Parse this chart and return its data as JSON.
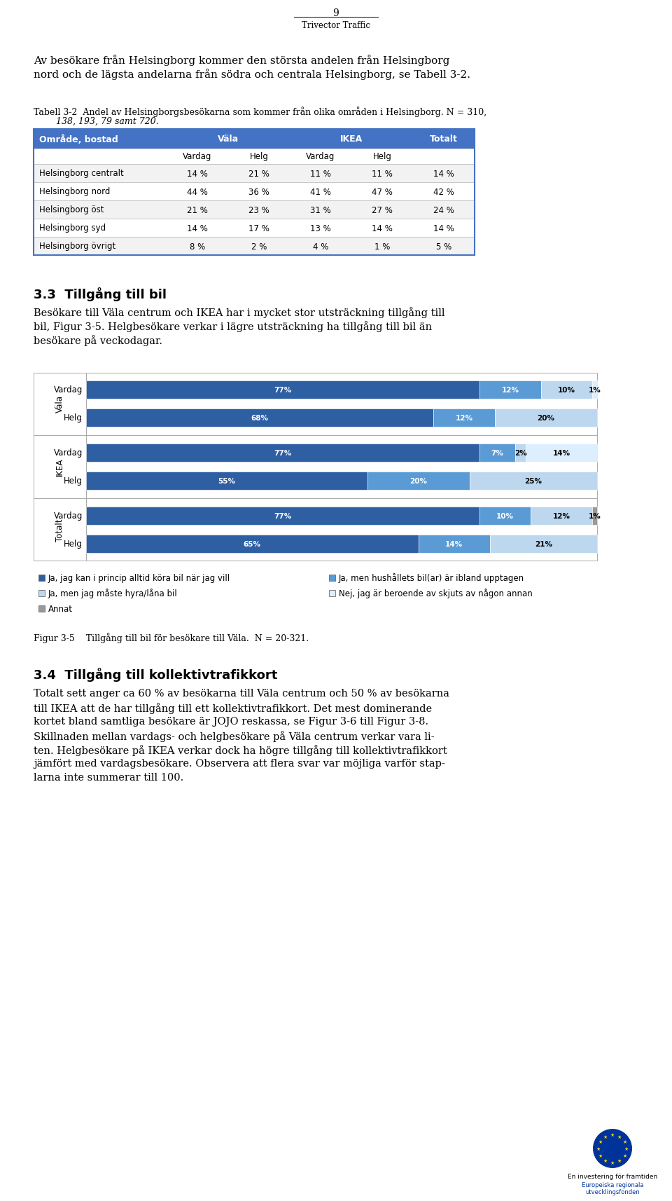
{
  "page_number": "9",
  "company": "Trivector Traffic",
  "intro_text_line1": "Av besökare från Helsingborg kommer den största andelen från Helsingborg",
  "intro_text_line2": "nord och de lägsta andelarna från södra och centrala Helsingborg, se Tabell 3-2.",
  "table_caption_line1": "Tabell 3-2  Andel av Helsingborgsbesökarna som kommer från olika områden i Helsingborg. N = 310,",
  "table_caption_line2": "        138, 193, 79 samt 720.",
  "table_header": [
    "Område, bostad",
    "Väla",
    "",
    "IKEA",
    "",
    "Totalt"
  ],
  "table_subheader": [
    "",
    "Vardag",
    "Helg",
    "Vardag",
    "Helg",
    ""
  ],
  "table_rows": [
    [
      "Helsingborg centralt",
      "14 %",
      "21 %",
      "11 %",
      "11 %",
      "14 %"
    ],
    [
      "Helsingborg nord",
      "44 %",
      "36 %",
      "41 %",
      "47 %",
      "42 %"
    ],
    [
      "Helsingborg öst",
      "21 %",
      "23 %",
      "31 %",
      "27 %",
      "24 %"
    ],
    [
      "Helsingborg syd",
      "14 %",
      "17 %",
      "13 %",
      "14 %",
      "14 %"
    ],
    [
      "Helsingborg övrigt",
      "8 %",
      "2 %",
      "4 %",
      "1 %",
      "5 %"
    ]
  ],
  "header_bg": "#4472C4",
  "section33_title": "3.3  Tillgång till bil",
  "section33_text_line1": "Besökare till Väla centrum och IKEA har i mycket stor utsträckning tillgång till",
  "section33_text_line2": "bil, Figur 3-5. Helgbesökare verkar i lägre utsträckning ha tillgång till bil än",
  "section33_text_line3": "besökare på veckodagar.",
  "bar_entries": [
    [
      "Väla",
      "Vardag",
      [
        77,
        12,
        10,
        1,
        0
      ]
    ],
    [
      "Väla",
      "Helg",
      [
        68,
        12,
        20,
        0,
        0
      ]
    ],
    [
      "IKEA",
      "Vardag",
      [
        77,
        7,
        2,
        14,
        0
      ]
    ],
    [
      "IKEA",
      "Helg",
      [
        55,
        20,
        25,
        0,
        0
      ]
    ],
    [
      "Totalt",
      "Vardag",
      [
        77,
        10,
        12,
        0,
        1
      ]
    ],
    [
      "Totalt",
      "Helg",
      [
        65,
        14,
        21,
        0,
        0
      ]
    ]
  ],
  "bar_colors": [
    "#2E5FA3",
    "#5B9BD5",
    "#BDD7EE",
    "#DDEEFF",
    "#999999"
  ],
  "bar_text_colors": [
    "white",
    "white",
    "black",
    "black",
    "black"
  ],
  "group_labels": [
    "Väla",
    "IKEA",
    "Totalt"
  ],
  "legend_items": [
    [
      "#2E5FA3",
      "Ja, jag kan i princip alltid köra bil när jag vill"
    ],
    [
      "#5B9BD5",
      "Ja, men hushållets bil(ar) är ibland upptagen"
    ],
    [
      "#BDD7EE",
      "Ja, men jag måste hyra/låna bil"
    ],
    [
      "#DDEEFF",
      "Nej, jag är beroende av skjuts av någon annan"
    ],
    [
      "#999999",
      "Annat"
    ]
  ],
  "figure_caption": "Figur 3-5    Tillgång till bil för besökare till Väla.  N = 20-321.",
  "section34_title": "3.4  Tillgång till kollektivtrafikkort",
  "section34_text": "Totalt sett anger ca 60 % av besökarna till Väla centrum och 50 % av besökarna\ntill IKEA att de har tillgång till ett kollektivtrafikkort. Det mest dominerande\nkortet bland samtliga besökare är JOJO reskassa, se Figur 3-6 till Figur 3-8.\nSkillnaden mellan vardags- och helgbesökare på Väla centrum verkar vara li-\nten. Helgbesökare på IKEA verkar dock ha högre tillgång till kollektivtrafikkort\njämfört med vardagsbesökare. Observera att flera svar var möjliga varför stap-\nlarna inte summerar till 100.",
  "eu_text1": "En investering för framtiden",
  "eu_text2": "Europeiska regionala",
  "eu_text3": "utvecklingsfonden"
}
